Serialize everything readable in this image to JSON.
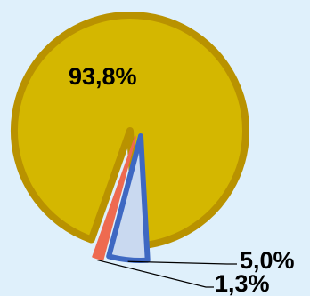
{
  "chart_data": {
    "type": "pie",
    "series": [
      {
        "label": "93,8%",
        "value": 93.8,
        "fill": "#d4b700",
        "stroke": "#b99200"
      },
      {
        "label": "1,3%",
        "value": 1.3,
        "fill": "#ee6a50",
        "stroke": "#ee6a50"
      },
      {
        "label": "5,0%",
        "value": 5.0,
        "fill": "#c9d9f0",
        "stroke": "#3e68c2"
      }
    ],
    "background": "#dff0fb"
  }
}
